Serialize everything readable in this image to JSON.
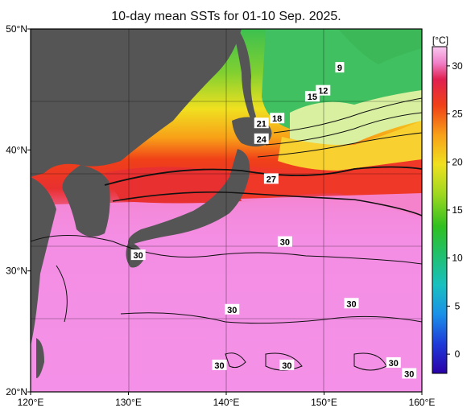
{
  "title": "10-day mean SSTs for 01-10 Sep. 2025.",
  "map": {
    "lon_range": [
      120,
      160
    ],
    "lat_range": [
      20,
      50
    ],
    "lon_ticks": [
      "120°E",
      "130°E",
      "140°E",
      "150°E",
      "160°E"
    ],
    "lat_ticks": [
      "50°N",
      "40°N",
      "30°N",
      "20°N"
    ],
    "land_color": "#555555",
    "grid": true
  },
  "colorbar": {
    "unit": "[°C]",
    "ticks": [
      "30",
      "25",
      "20",
      "15",
      "10",
      "5",
      "0"
    ],
    "tick_values": [
      30,
      25,
      20,
      15,
      10,
      5,
      0
    ],
    "range": [
      -2,
      32
    ],
    "colors": [
      "#2a00a8",
      "#1e50e0",
      "#1ab0d8",
      "#20c070",
      "#30c020",
      "#90d820",
      "#f0e020",
      "#f8a018",
      "#f04018",
      "#e02050",
      "#f080c8",
      "#f8c0f0"
    ]
  },
  "contour_labels": [
    {
      "text": "9",
      "lon": 151.6,
      "lat": 46.8
    },
    {
      "text": "12",
      "lon": 149.9,
      "lat": 44.9
    },
    {
      "text": "15",
      "lon": 148.8,
      "lat": 44.4
    },
    {
      "text": "18",
      "lon": 145.2,
      "lat": 42.6
    },
    {
      "text": "21",
      "lon": 143.6,
      "lat": 42.2
    },
    {
      "text": "24",
      "lon": 143.6,
      "lat": 40.9
    },
    {
      "text": "27",
      "lon": 144.6,
      "lat": 37.6
    },
    {
      "text": "30",
      "lon": 146.0,
      "lat": 32.4
    },
    {
      "text": "30",
      "lon": 131.0,
      "lat": 31.3
    },
    {
      "text": "30",
      "lon": 140.6,
      "lat": 26.8
    },
    {
      "text": "30",
      "lon": 152.8,
      "lat": 27.3
    },
    {
      "text": "30",
      "lon": 139.3,
      "lat": 22.2
    },
    {
      "text": "30",
      "lon": 146.2,
      "lat": 22.2
    },
    {
      "text": "30",
      "lon": 157.1,
      "lat": 22.4
    },
    {
      "text": "30",
      "lon": 158.7,
      "lat": 21.5
    }
  ]
}
